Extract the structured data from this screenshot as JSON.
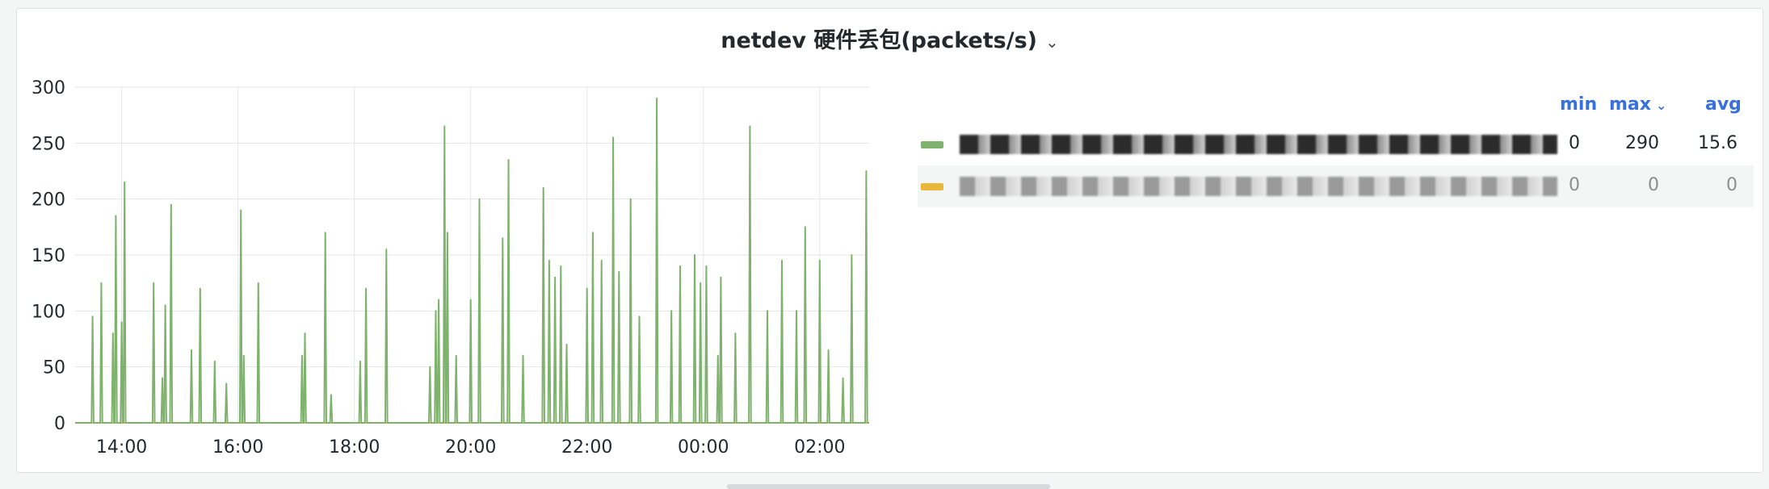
{
  "panel": {
    "title": "netdev 硬件丢包(packets/s)",
    "menu_icon": "chevron-down-icon"
  },
  "legend": {
    "headers": {
      "min": "min",
      "max": "max",
      "avg": "avg"
    },
    "sort_icon": "chevron-down-icon",
    "rows": [
      {
        "name": "",
        "color": "#7eb26d",
        "min": "0",
        "max": "290",
        "avg": "15.6"
      },
      {
        "name": "",
        "color": "#eab839",
        "min": "0",
        "max": "0",
        "avg": "0"
      }
    ]
  },
  "chart_data": {
    "type": "line",
    "title": "netdev 硬件丢包(packets/s)",
    "xlabel": "",
    "ylabel": "",
    "x_ticks": [
      "14:00",
      "16:00",
      "18:00",
      "20:00",
      "22:00",
      "00:00",
      "02:00"
    ],
    "y_ticks": [
      0,
      50,
      100,
      150,
      200,
      250,
      300
    ],
    "ylim": [
      0,
      300
    ],
    "x_range_hours": [
      13.2,
      26.85
    ],
    "grid": true,
    "legend_position": "right",
    "series": [
      {
        "color": "#7eb26d",
        "spikes": [
          [
            13.5,
            95
          ],
          [
            13.65,
            125
          ],
          [
            13.85,
            80
          ],
          [
            13.9,
            185
          ],
          [
            14.0,
            90
          ],
          [
            14.05,
            215
          ],
          [
            14.55,
            125
          ],
          [
            14.7,
            40
          ],
          [
            14.75,
            105
          ],
          [
            14.85,
            195
          ],
          [
            15.2,
            65
          ],
          [
            15.35,
            120
          ],
          [
            15.6,
            55
          ],
          [
            15.8,
            35
          ],
          [
            16.05,
            190
          ],
          [
            16.1,
            60
          ],
          [
            16.35,
            125
          ],
          [
            17.1,
            60
          ],
          [
            17.15,
            80
          ],
          [
            17.5,
            170
          ],
          [
            17.6,
            25
          ],
          [
            18.1,
            55
          ],
          [
            18.2,
            120
          ],
          [
            18.55,
            155
          ],
          [
            19.3,
            50
          ],
          [
            19.4,
            100
          ],
          [
            19.45,
            110
          ],
          [
            19.55,
            265
          ],
          [
            19.6,
            170
          ],
          [
            19.75,
            60
          ],
          [
            20.0,
            110
          ],
          [
            20.15,
            200
          ],
          [
            20.55,
            165
          ],
          [
            20.65,
            235
          ],
          [
            20.9,
            60
          ],
          [
            21.25,
            210
          ],
          [
            21.35,
            145
          ],
          [
            21.45,
            130
          ],
          [
            21.55,
            140
          ],
          [
            21.65,
            70
          ],
          [
            22.0,
            120
          ],
          [
            22.1,
            170
          ],
          [
            22.25,
            145
          ],
          [
            22.45,
            255
          ],
          [
            22.55,
            135
          ],
          [
            22.75,
            200
          ],
          [
            22.9,
            95
          ],
          [
            23.2,
            290
          ],
          [
            23.45,
            100
          ],
          [
            23.6,
            140
          ],
          [
            23.85,
            150
          ],
          [
            23.95,
            125
          ],
          [
            24.05,
            140
          ],
          [
            24.25,
            60
          ],
          [
            24.3,
            130
          ],
          [
            24.55,
            80
          ],
          [
            24.8,
            265
          ],
          [
            25.1,
            100
          ],
          [
            25.35,
            145
          ],
          [
            25.6,
            100
          ],
          [
            25.75,
            175
          ],
          [
            26.0,
            145
          ],
          [
            26.15,
            65
          ],
          [
            26.4,
            40
          ],
          [
            26.55,
            150
          ],
          [
            26.8,
            225
          ]
        ],
        "max": 290,
        "avg": 15.6
      },
      {
        "color": "#eab839",
        "constant": 0
      }
    ]
  }
}
